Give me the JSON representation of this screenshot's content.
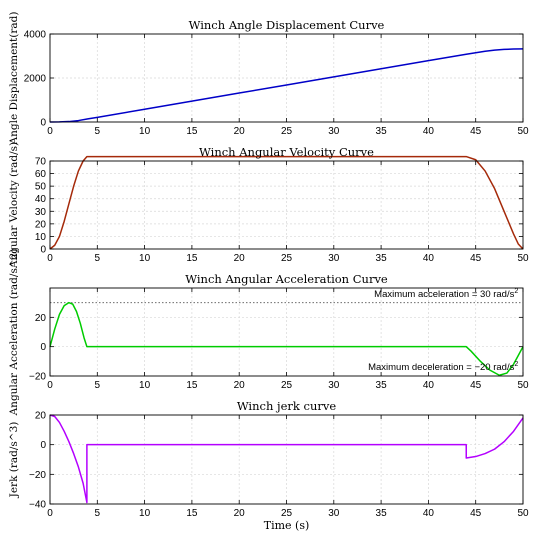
{
  "chart_data": [
    {
      "type": "line",
      "title": "Winch Angle Displacement Curve",
      "xlabel": "",
      "ylabel": "Angle Displacement(rad)",
      "xlim": [
        0,
        50
      ],
      "ylim": [
        0,
        4000
      ],
      "xticks": [
        0,
        5,
        10,
        15,
        20,
        25,
        30,
        35,
        40,
        45,
        50
      ],
      "yticks": [
        0,
        2000,
        4000
      ],
      "grid": true,
      "series": [
        {
          "color": "#0000c8",
          "x": [
            0,
            1,
            2,
            3,
            4,
            5,
            10,
            15,
            20,
            25,
            30,
            35,
            40,
            44,
            45,
            46,
            47,
            48,
            49,
            50
          ],
          "y": [
            0,
            3,
            20,
            65,
            140,
            212,
            580,
            948,
            1316,
            1684,
            2052,
            2420,
            2788,
            3082,
            3150,
            3215,
            3265,
            3300,
            3318,
            3323
          ]
        }
      ]
    },
    {
      "type": "line",
      "title": "Winch Angular Velocity Curve",
      "xlabel": "",
      "ylabel": "Angular Velocity (rad/s)",
      "xlim": [
        0,
        50
      ],
      "ylim": [
        0,
        70
      ],
      "xticks": [
        0,
        5,
        10,
        15,
        20,
        25,
        30,
        35,
        40,
        45,
        50
      ],
      "yticks": [
        0,
        10,
        20,
        30,
        40,
        50,
        60,
        70
      ],
      "grid": true,
      "series": [
        {
          "color": "#a52a0a",
          "x": [
            0,
            0.5,
            1,
            1.5,
            2,
            2.5,
            3,
            3.5,
            3.9,
            44,
            45,
            46,
            47,
            48,
            49,
            49.5,
            50
          ],
          "y": [
            0,
            3,
            10,
            22,
            36,
            50,
            62,
            70,
            73.5,
            73.5,
            71,
            62,
            48,
            30,
            12,
            4,
            0
          ]
        }
      ]
    },
    {
      "type": "line",
      "title": "Winch Angular Acceleration Curve",
      "xlabel": "",
      "ylabel": "Angular Acceleration (rad/s^2)",
      "xlim": [
        0,
        50
      ],
      "ylim": [
        -20,
        40
      ],
      "xticks": [
        0,
        5,
        10,
        15,
        20,
        25,
        30,
        35,
        40,
        45,
        50
      ],
      "yticks": [
        -20,
        0,
        20
      ],
      "grid": true,
      "annotations": [
        {
          "text": "Maximum acceleration = 30 rad/s",
          "sup": "2",
          "x": 49.5,
          "y": 34
        },
        {
          "text": "Maximum deceleration = −20 rad/s",
          "sup": "2",
          "x": 49.5,
          "y": -16
        },
        {
          "text": "",
          "reference_y": 30,
          "style": "dotted"
        }
      ],
      "series": [
        {
          "color": "#00cc00",
          "x": [
            0,
            0.5,
            1,
            1.5,
            2,
            2.4,
            2.8,
            3.2,
            3.6,
            3.9,
            4,
            44,
            44.5,
            45.5,
            46.5,
            47.5,
            48.3,
            49,
            49.5,
            50
          ],
          "y": [
            0,
            12,
            22,
            28,
            30,
            29,
            24,
            16,
            6,
            0,
            0,
            0,
            -3,
            -10,
            -16,
            -19.5,
            -18,
            -12,
            -6,
            0
          ]
        }
      ]
    },
    {
      "type": "line",
      "title": "Winch jerk curve",
      "xlabel": "Time (s)",
      "ylabel": "Jerk (rad/s^3)",
      "xlim": [
        0,
        50
      ],
      "ylim": [
        -40,
        20
      ],
      "xticks": [
        0,
        5,
        10,
        15,
        20,
        25,
        30,
        35,
        40,
        45,
        50
      ],
      "yticks": [
        -40,
        -20,
        0,
        20
      ],
      "grid": true,
      "series": [
        {
          "color": "#b400ff",
          "x": [
            0,
            0.5,
            1,
            1.5,
            2,
            2.5,
            3,
            3.5,
            3.9,
            3.9,
            4,
            44,
            44,
            45,
            46,
            47,
            48,
            49,
            50
          ],
          "y": [
            20,
            19,
            15,
            9,
            2,
            -6,
            -15,
            -26,
            -39,
            0,
            0,
            0,
            -9,
            -8,
            -6,
            -3,
            2,
            9,
            18
          ]
        }
      ]
    }
  ]
}
